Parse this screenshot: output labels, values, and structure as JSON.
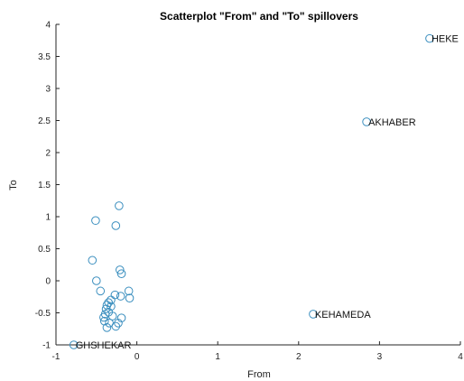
{
  "chart_data": {
    "type": "scatter",
    "title": "Scatterplot \"From\" and \"To\" spillovers",
    "xlabel": "From",
    "ylabel": "To",
    "xlim": [
      -1,
      4
    ],
    "ylim": [
      -1,
      4
    ],
    "xticks": [
      -1,
      0,
      1,
      2,
      3,
      4
    ],
    "xtick_labels": [
      "-1",
      "0",
      "1",
      "2",
      "3",
      "4"
    ],
    "yticks": [
      -1,
      -0.5,
      0,
      0.5,
      1,
      1.5,
      2,
      2.5,
      3,
      3.5,
      4
    ],
    "ytick_labels": [
      "-1",
      "-0.5",
      "0",
      "0.5",
      "1",
      "1.5",
      "2",
      "2.5",
      "3",
      "3.5",
      "4"
    ],
    "grid": false,
    "marker_color": "#3b8fbf",
    "points": [
      {
        "x": -0.51,
        "y": 0.94
      },
      {
        "x": -0.22,
        "y": 1.17
      },
      {
        "x": -0.26,
        "y": 0.86
      },
      {
        "x": -0.55,
        "y": 0.32
      },
      {
        "x": -0.21,
        "y": 0.17
      },
      {
        "x": -0.19,
        "y": 0.11
      },
      {
        "x": -0.5,
        "y": 0.0
      },
      {
        "x": -0.45,
        "y": -0.16
      },
      {
        "x": -0.1,
        "y": -0.16
      },
      {
        "x": -0.27,
        "y": -0.22
      },
      {
        "x": -0.2,
        "y": -0.24
      },
      {
        "x": -0.09,
        "y": -0.27
      },
      {
        "x": -0.32,
        "y": -0.3
      },
      {
        "x": -0.35,
        "y": -0.34
      },
      {
        "x": -0.37,
        "y": -0.38
      },
      {
        "x": -0.32,
        "y": -0.4
      },
      {
        "x": -0.38,
        "y": -0.44
      },
      {
        "x": -0.35,
        "y": -0.49
      },
      {
        "x": -0.39,
        "y": -0.52
      },
      {
        "x": -0.3,
        "y": -0.55
      },
      {
        "x": -0.41,
        "y": -0.57
      },
      {
        "x": -0.19,
        "y": -0.58
      },
      {
        "x": -0.4,
        "y": -0.63
      },
      {
        "x": -0.34,
        "y": -0.66
      },
      {
        "x": -0.23,
        "y": -0.66
      },
      {
        "x": -0.26,
        "y": -0.71
      },
      {
        "x": -0.37,
        "y": -0.73
      },
      {
        "x": -0.78,
        "y": -1.0
      },
      {
        "x": 2.18,
        "y": -0.52
      },
      {
        "x": 2.84,
        "y": 2.48
      },
      {
        "x": 3.62,
        "y": 3.78
      }
    ],
    "annotations": [
      {
        "text": "HEKE",
        "x": 3.62,
        "y": 3.78
      },
      {
        "text": "AKHABER",
        "x": 2.84,
        "y": 2.48
      },
      {
        "text": "KEHAMEDA",
        "x": 2.18,
        "y": -0.52
      },
      {
        "text": "GHSHEKAR",
        "x": -0.78,
        "y": -1.0
      }
    ]
  }
}
